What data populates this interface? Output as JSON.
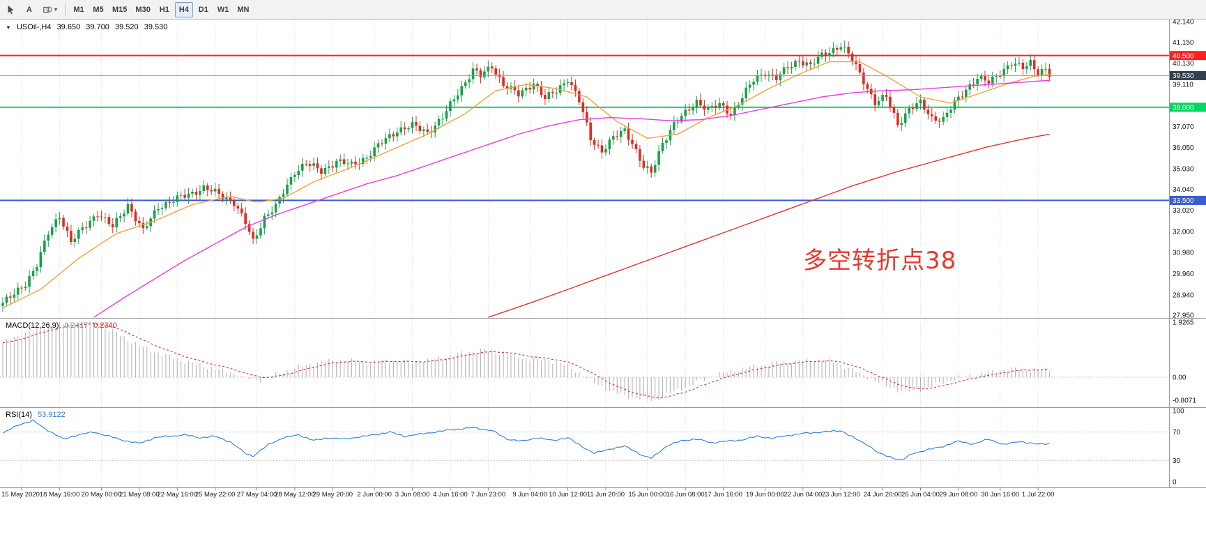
{
  "toolbar": {
    "text_tool_label": "A",
    "timeframes": [
      "M1",
      "M5",
      "M15",
      "M30",
      "H1",
      "H4",
      "D1",
      "W1",
      "MN"
    ],
    "active_timeframe": "H4"
  },
  "icons": {
    "collapse": "▼",
    "shapes_caret": "▾"
  },
  "header": {
    "symbol": "USOil-,H4",
    "ohlc": [
      "39.650",
      "39.700",
      "39.520",
      "39.530"
    ]
  },
  "annotation": {
    "text": "多空转折点38",
    "color": "#e8372c"
  },
  "indicators": {
    "macd": {
      "label": "MACD(12,26,9)",
      "values": [
        "0.2417",
        "0.2340"
      ]
    },
    "rsi": {
      "label": "RSI(14)",
      "value": "53.9122"
    }
  },
  "chart_data": {
    "type": "candlestick",
    "symbol": "USOil-,H4",
    "timeframe": "H4",
    "num_candles": 277,
    "ylim": [
      27.82,
      42.24
    ],
    "up_color": "#17a24a",
    "down_color": "#e02b20",
    "price_scale_labels": [
      "42.140",
      "41.150",
      "40.130",
      "39.110",
      "37.070",
      "36.050",
      "35.030",
      "34.040",
      "33.020",
      "32.000",
      "30.980",
      "29.960",
      "28.940",
      "27.950"
    ],
    "time_labels": [
      "15 May 2020",
      "18 May 16:00",
      "20 May 00:00",
      "21 May 08:00",
      "22 May 16:00",
      "25 May 22:00",
      "27 May 04:00",
      "28 May 12:00",
      "29 May 20:00",
      "2 Jun 00:00",
      "3 Jun 08:00",
      "4 Jun 16:00",
      "7 Jun 23:00",
      "9 Jun 04:00",
      "10 Jun 12:00",
      "11 Jun 20:00",
      "15 Jun 00:00",
      "16 Jun 08:00",
      "17 Jun 16:00",
      "19 Jun 00:00",
      "22 Jun 04:00",
      "23 Jun 12:00",
      "24 Jun 20:00",
      "26 Jun 04:00",
      "29 Jun 08:00",
      "30 Jun 16:00",
      "1 Jul 22:00"
    ],
    "tick_indices": [
      5,
      15,
      26,
      36,
      46,
      56,
      67,
      77,
      87,
      98,
      108,
      118,
      128,
      139,
      149,
      159,
      170,
      180,
      190,
      201,
      211,
      221,
      232,
      242,
      252,
      263,
      273
    ],
    "hlines": [
      {
        "price": 40.5,
        "label": "40.500",
        "color": "#ff2020",
        "width": 2
      },
      {
        "price": 39.53,
        "label": "39.530",
        "color": "#9a9a9a",
        "badge": "#333f4c",
        "width": 1,
        "role": "bid"
      },
      {
        "price": 38.0,
        "label": "38.000",
        "color": "#00d95f",
        "width": 2
      },
      {
        "price": 33.5,
        "label": "33.500",
        "color": "#3b5bd0",
        "width": 2
      }
    ],
    "price_anchors": [
      [
        0,
        28.55
      ],
      [
        3,
        28.95
      ],
      [
        6,
        29.5
      ],
      [
        9,
        30.4
      ],
      [
        12,
        31.9
      ],
      [
        15,
        32.8
      ],
      [
        18,
        31.5
      ],
      [
        21,
        32.1
      ],
      [
        25,
        32.9
      ],
      [
        29,
        32.2
      ],
      [
        33,
        33.3
      ],
      [
        37,
        32.0
      ],
      [
        41,
        33.2
      ],
      [
        45,
        33.5
      ],
      [
        49,
        33.8
      ],
      [
        53,
        34.1
      ],
      [
        57,
        33.8
      ],
      [
        61,
        33.4
      ],
      [
        64,
        32.4
      ],
      [
        66,
        31.5
      ],
      [
        69,
        32.7
      ],
      [
        72,
        33.2
      ],
      [
        77,
        34.9
      ],
      [
        80,
        35.3
      ],
      [
        84,
        34.9
      ],
      [
        88,
        35.4
      ],
      [
        92,
        35.2
      ],
      [
        96,
        35.6
      ],
      [
        100,
        36.3
      ],
      [
        104,
        36.9
      ],
      [
        108,
        37.1
      ],
      [
        112,
        36.8
      ],
      [
        116,
        37.5
      ],
      [
        120,
        38.7
      ],
      [
        124,
        39.8
      ],
      [
        126,
        39.5
      ],
      [
        129,
        40.0
      ],
      [
        132,
        39.1
      ],
      [
        136,
        38.6
      ],
      [
        140,
        39.2
      ],
      [
        143,
        38.4
      ],
      [
        146,
        38.8
      ],
      [
        149,
        39.4
      ],
      [
        152,
        38.3
      ],
      [
        155,
        36.5
      ],
      [
        158,
        35.9
      ],
      [
        161,
        36.5
      ],
      [
        164,
        36.9
      ],
      [
        166,
        36.3
      ],
      [
        169,
        35.1
      ],
      [
        171,
        34.8
      ],
      [
        174,
        36.3
      ],
      [
        177,
        37.2
      ],
      [
        180,
        37.7
      ],
      [
        183,
        38.3
      ],
      [
        186,
        37.9
      ],
      [
        189,
        38.1
      ],
      [
        192,
        37.7
      ],
      [
        195,
        38.5
      ],
      [
        198,
        39.3
      ],
      [
        201,
        39.7
      ],
      [
        204,
        39.4
      ],
      [
        207,
        39.9
      ],
      [
        210,
        40.3
      ],
      [
        213,
        40.0
      ],
      [
        216,
        40.5
      ],
      [
        219,
        40.8
      ],
      [
        221,
        41.0
      ],
      [
        224,
        40.3
      ],
      [
        227,
        39.3
      ],
      [
        230,
        38.2
      ],
      [
        233,
        38.5
      ],
      [
        236,
        37.2
      ],
      [
        239,
        37.9
      ],
      [
        242,
        38.2
      ],
      [
        245,
        37.5
      ],
      [
        248,
        37.4
      ],
      [
        251,
        38.2
      ],
      [
        254,
        38.9
      ],
      [
        257,
        39.4
      ],
      [
        260,
        39.2
      ],
      [
        263,
        39.7
      ],
      [
        266,
        40.1
      ],
      [
        269,
        39.9
      ],
      [
        271,
        40.2
      ],
      [
        273,
        39.7
      ],
      [
        275,
        39.8
      ],
      [
        276,
        39.53
      ]
    ],
    "moving_averages": [
      {
        "name": "ma-fast-orange",
        "color": "#f2a33c",
        "anchors": [
          [
            0,
            28.3
          ],
          [
            10,
            29.2
          ],
          [
            20,
            30.7
          ],
          [
            30,
            31.9
          ],
          [
            40,
            32.5
          ],
          [
            50,
            33.3
          ],
          [
            60,
            33.7
          ],
          [
            67,
            33.4
          ],
          [
            74,
            33.6
          ],
          [
            82,
            34.4
          ],
          [
            92,
            35.1
          ],
          [
            102,
            35.9
          ],
          [
            112,
            36.7
          ],
          [
            122,
            37.7
          ],
          [
            130,
            38.8
          ],
          [
            138,
            39.1
          ],
          [
            146,
            38.9
          ],
          [
            154,
            38.5
          ],
          [
            162,
            37.3
          ],
          [
            170,
            36.5
          ],
          [
            178,
            36.7
          ],
          [
            186,
            37.5
          ],
          [
            194,
            38.1
          ],
          [
            202,
            38.9
          ],
          [
            210,
            39.6
          ],
          [
            218,
            40.2
          ],
          [
            226,
            40.2
          ],
          [
            234,
            39.4
          ],
          [
            242,
            38.5
          ],
          [
            250,
            38.2
          ],
          [
            258,
            38.7
          ],
          [
            266,
            39.2
          ],
          [
            272,
            39.5
          ],
          [
            276,
            39.6
          ]
        ]
      },
      {
        "name": "ma-mid-magenta",
        "color": "#e63ce6",
        "anchors": [
          [
            24,
            27.85
          ],
          [
            32,
            28.8
          ],
          [
            40,
            29.7
          ],
          [
            48,
            30.6
          ],
          [
            56,
            31.4
          ],
          [
            64,
            32.2
          ],
          [
            72,
            32.8
          ],
          [
            80,
            33.3
          ],
          [
            88,
            33.8
          ],
          [
            96,
            34.3
          ],
          [
            104,
            34.7
          ],
          [
            112,
            35.2
          ],
          [
            120,
            35.7
          ],
          [
            128,
            36.2
          ],
          [
            136,
            36.7
          ],
          [
            144,
            37.1
          ],
          [
            152,
            37.4
          ],
          [
            160,
            37.5
          ],
          [
            168,
            37.45
          ],
          [
            176,
            37.35
          ],
          [
            184,
            37.4
          ],
          [
            192,
            37.6
          ],
          [
            200,
            37.9
          ],
          [
            208,
            38.2
          ],
          [
            216,
            38.5
          ],
          [
            224,
            38.7
          ],
          [
            232,
            38.8
          ],
          [
            240,
            38.85
          ],
          [
            248,
            38.95
          ],
          [
            256,
            39.05
          ],
          [
            264,
            39.15
          ],
          [
            276,
            39.3
          ]
        ]
      },
      {
        "name": "ma-slow-red",
        "color": "#dd3333",
        "anchors": [
          [
            128,
            27.85
          ],
          [
            140,
            28.6
          ],
          [
            152,
            29.4
          ],
          [
            164,
            30.2
          ],
          [
            176,
            31.0
          ],
          [
            188,
            31.8
          ],
          [
            200,
            32.6
          ],
          [
            212,
            33.4
          ],
          [
            224,
            34.2
          ],
          [
            236,
            34.9
          ],
          [
            248,
            35.5
          ],
          [
            260,
            36.1
          ],
          [
            270,
            36.5
          ],
          [
            276,
            36.7
          ]
        ]
      }
    ],
    "macd": {
      "label": "MACD(12,26,9)",
      "current": [
        0.2417,
        0.234
      ],
      "ylim": [
        -1.05,
        2.05
      ],
      "scale": [
        "1.9265",
        "0.00",
        "-0.8071"
      ],
      "histogram_color": "#b4b4b4",
      "signal_color": "#d23a3a",
      "anchors": [
        [
          0,
          1.2
        ],
        [
          6,
          1.55
        ],
        [
          12,
          1.78
        ],
        [
          18,
          1.9
        ],
        [
          24,
          1.88
        ],
        [
          30,
          1.55
        ],
        [
          36,
          1.1
        ],
        [
          42,
          0.8
        ],
        [
          48,
          0.55
        ],
        [
          54,
          0.36
        ],
        [
          60,
          0.18
        ],
        [
          64,
          -0.05
        ],
        [
          68,
          -0.1
        ],
        [
          72,
          0.1
        ],
        [
          78,
          0.35
        ],
        [
          84,
          0.55
        ],
        [
          90,
          0.6
        ],
        [
          96,
          0.5
        ],
        [
          102,
          0.58
        ],
        [
          108,
          0.52
        ],
        [
          114,
          0.62
        ],
        [
          120,
          0.82
        ],
        [
          126,
          0.95
        ],
        [
          132,
          0.85
        ],
        [
          138,
          0.65
        ],
        [
          144,
          0.6
        ],
        [
          148,
          0.45
        ],
        [
          152,
          0.15
        ],
        [
          156,
          -0.2
        ],
        [
          160,
          -0.48
        ],
        [
          164,
          -0.65
        ],
        [
          168,
          -0.75
        ],
        [
          172,
          -0.8
        ],
        [
          176,
          -0.55
        ],
        [
          180,
          -0.35
        ],
        [
          184,
          -0.12
        ],
        [
          188,
          0.08
        ],
        [
          192,
          0.2
        ],
        [
          196,
          0.32
        ],
        [
          200,
          0.42
        ],
        [
          204,
          0.5
        ],
        [
          208,
          0.55
        ],
        [
          212,
          0.58
        ],
        [
          216,
          0.6
        ],
        [
          220,
          0.5
        ],
        [
          224,
          0.25
        ],
        [
          228,
          0.0
        ],
        [
          232,
          -0.25
        ],
        [
          236,
          -0.45
        ],
        [
          240,
          -0.5
        ],
        [
          244,
          -0.35
        ],
        [
          248,
          -0.18
        ],
        [
          252,
          -0.02
        ],
        [
          256,
          0.08
        ],
        [
          260,
          0.16
        ],
        [
          264,
          0.26
        ],
        [
          268,
          0.3
        ],
        [
          272,
          0.26
        ],
        [
          276,
          0.2417
        ]
      ]
    },
    "rsi": {
      "label": "RSI(14)",
      "current": 53.9122,
      "ylim": [
        0,
        100
      ],
      "levels": [
        70,
        30
      ],
      "scale": [
        "100",
        "70",
        "30",
        "0"
      ],
      "color": "#2a7fde",
      "anchors": [
        [
          0,
          68
        ],
        [
          4,
          80
        ],
        [
          8,
          86
        ],
        [
          12,
          72
        ],
        [
          16,
          60
        ],
        [
          20,
          66
        ],
        [
          24,
          70
        ],
        [
          28,
          64
        ],
        [
          32,
          58
        ],
        [
          36,
          54
        ],
        [
          40,
          62
        ],
        [
          44,
          64
        ],
        [
          48,
          66
        ],
        [
          52,
          62
        ],
        [
          56,
          64
        ],
        [
          60,
          56
        ],
        [
          64,
          40
        ],
        [
          66,
          36
        ],
        [
          70,
          52
        ],
        [
          74,
          62
        ],
        [
          78,
          66
        ],
        [
          82,
          58
        ],
        [
          86,
          62
        ],
        [
          90,
          60
        ],
        [
          94,
          63
        ],
        [
          98,
          66
        ],
        [
          102,
          70
        ],
        [
          106,
          64
        ],
        [
          110,
          67
        ],
        [
          114,
          70
        ],
        [
          118,
          73
        ],
        [
          124,
          76
        ],
        [
          129,
          72
        ],
        [
          133,
          60
        ],
        [
          137,
          57
        ],
        [
          141,
          62
        ],
        [
          145,
          58
        ],
        [
          149,
          62
        ],
        [
          152,
          52
        ],
        [
          156,
          40
        ],
        [
          160,
          46
        ],
        [
          164,
          50
        ],
        [
          166,
          45
        ],
        [
          169,
          36
        ],
        [
          171,
          33
        ],
        [
          175,
          50
        ],
        [
          179,
          58
        ],
        [
          183,
          60
        ],
        [
          187,
          55
        ],
        [
          191,
          57
        ],
        [
          195,
          59
        ],
        [
          199,
          64
        ],
        [
          203,
          61
        ],
        [
          207,
          65
        ],
        [
          211,
          68
        ],
        [
          216,
          70
        ],
        [
          221,
          72
        ],
        [
          225,
          60
        ],
        [
          228,
          52
        ],
        [
          231,
          40
        ],
        [
          234,
          35
        ],
        [
          237,
          30
        ],
        [
          240,
          40
        ],
        [
          244,
          45
        ],
        [
          248,
          50
        ],
        [
          252,
          57
        ],
        [
          256,
          53
        ],
        [
          260,
          60
        ],
        [
          264,
          52
        ],
        [
          268,
          57
        ],
        [
          272,
          53
        ],
        [
          276,
          54
        ]
      ]
    }
  }
}
